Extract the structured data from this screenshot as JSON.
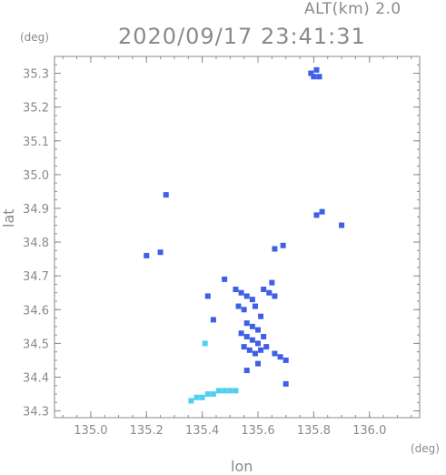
{
  "header": {
    "altitude": "ALT(km)  2.0",
    "datetime": "2020/09/17  23:41:31",
    "y_unit": "(deg)",
    "x_unit": "(deg)"
  },
  "axes": {
    "xlabel": "lon",
    "ylabel": "lat",
    "xlim": [
      134.87,
      136.18
    ],
    "ylim": [
      34.28,
      35.35
    ],
    "xticks": [
      "135.0",
      "135.2",
      "135.4",
      "135.6",
      "135.8",
      "136.0"
    ],
    "yticks": [
      "34.3",
      "34.4",
      "34.5",
      "34.6",
      "34.7",
      "34.8",
      "34.9",
      "35.0",
      "35.1",
      "35.2",
      "35.3"
    ],
    "xtick_values": [
      135.0,
      135.2,
      135.4,
      135.6,
      135.8,
      136.0
    ],
    "ytick_values": [
      34.3,
      34.4,
      34.5,
      34.6,
      34.7,
      34.8,
      34.9,
      35.0,
      35.1,
      35.2,
      35.3
    ],
    "grid": false
  },
  "colors": {
    "axis": "#8a8a8a",
    "echo_blue": "#3f5fe6",
    "echo_cyan": "#4fd0f0",
    "echo_light": "#6fa8f0"
  },
  "chart_data": {
    "type": "scatter",
    "title": "2020/09/17  23:41:31",
    "xlabel": "lon",
    "ylabel": "lat",
    "series": [
      {
        "color": "#3f5fe6",
        "points": [
          [
            135.8,
            35.29
          ],
          [
            135.82,
            35.29
          ],
          [
            135.79,
            35.3
          ],
          [
            135.81,
            35.31
          ],
          [
            135.81,
            34.88
          ],
          [
            135.83,
            34.89
          ],
          [
            135.9,
            34.85
          ],
          [
            135.27,
            34.94
          ],
          [
            135.2,
            34.76
          ],
          [
            135.25,
            34.77
          ],
          [
            135.69,
            34.79
          ],
          [
            135.66,
            34.78
          ],
          [
            135.52,
            34.66
          ],
          [
            135.54,
            34.65
          ],
          [
            135.56,
            34.64
          ],
          [
            135.58,
            34.63
          ],
          [
            135.53,
            34.61
          ],
          [
            135.55,
            34.6
          ],
          [
            135.59,
            34.61
          ],
          [
            135.62,
            34.66
          ],
          [
            135.65,
            34.68
          ],
          [
            135.64,
            34.65
          ],
          [
            135.66,
            34.64
          ],
          [
            135.61,
            34.58
          ],
          [
            135.56,
            34.56
          ],
          [
            135.58,
            34.55
          ],
          [
            135.6,
            34.54
          ],
          [
            135.54,
            34.53
          ],
          [
            135.56,
            34.52
          ],
          [
            135.58,
            34.51
          ],
          [
            135.6,
            34.5
          ],
          [
            135.62,
            34.52
          ],
          [
            135.55,
            34.49
          ],
          [
            135.57,
            34.48
          ],
          [
            135.59,
            34.47
          ],
          [
            135.61,
            34.48
          ],
          [
            135.63,
            34.49
          ],
          [
            135.66,
            34.47
          ],
          [
            135.68,
            34.46
          ],
          [
            135.7,
            34.45
          ],
          [
            135.56,
            34.42
          ],
          [
            135.6,
            34.44
          ],
          [
            135.44,
            34.57
          ],
          [
            135.42,
            34.64
          ],
          [
            135.48,
            34.69
          ],
          [
            135.7,
            34.38
          ]
        ]
      },
      {
        "color": "#4fd0f0",
        "points": [
          [
            135.36,
            34.33
          ],
          [
            135.38,
            34.34
          ],
          [
            135.4,
            34.34
          ],
          [
            135.42,
            34.35
          ],
          [
            135.44,
            34.35
          ],
          [
            135.46,
            34.36
          ],
          [
            135.48,
            34.36
          ],
          [
            135.5,
            34.36
          ],
          [
            135.52,
            34.36
          ],
          [
            135.41,
            34.5
          ]
        ]
      }
    ]
  }
}
